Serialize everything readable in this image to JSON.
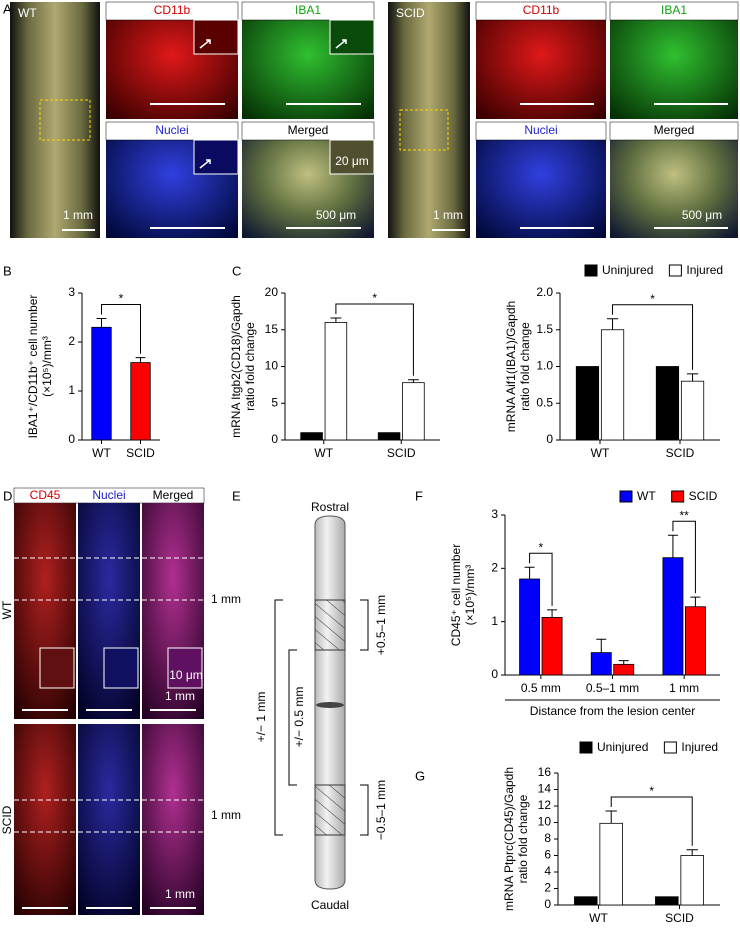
{
  "panel_labels": [
    "A",
    "B",
    "C",
    "D",
    "E",
    "F",
    "G"
  ],
  "panel_a": {
    "wt": {
      "label": "WT",
      "tiles": [
        "CD11b",
        "IBA1",
        "Nuclei",
        "Merged"
      ],
      "scale_bars": [
        "1 mm",
        "20 μm",
        "500 μm"
      ]
    },
    "scid": {
      "label": "SCID",
      "tiles": [
        "CD11b",
        "IBA1",
        "Nuclei",
        "Merged"
      ],
      "scale_bars": [
        "1 mm",
        "500 μm"
      ]
    }
  },
  "panel_d": {
    "columns": [
      "CD45",
      "Nuclei",
      "Merged"
    ],
    "rows": [
      "WT",
      "SCID"
    ],
    "side_labels": [
      "1 mm",
      "1 mm"
    ],
    "scale_bars": [
      "10 μm",
      "1 mm",
      "1 mm"
    ]
  },
  "panel_e": {
    "top": "Rostral",
    "bottom": "Caudal",
    "brackets": [
      "+/− 1 mm",
      "+/− 0.5 mm",
      "+0.5–1 mm",
      "−0.5–1 mm"
    ]
  },
  "chart_data": [
    {
      "type": "bar",
      "ylabel": [
        "IBA1⁺/CD11b⁺ cell number",
        "(×10⁵)/mm³"
      ],
      "categories": [
        "WT",
        "SCID"
      ],
      "values": [
        2.3,
        1.58
      ],
      "errors": [
        0.18,
        0.1
      ],
      "colors": [
        "#0000ff",
        "#ff0000"
      ],
      "ylim": [
        0,
        3
      ],
      "yticks": [
        0,
        1,
        2,
        3
      ],
      "significance": [
        "*"
      ]
    },
    {
      "type": "bar",
      "ylabel": [
        "mRNA Itgb2(CD18)/Gapdh",
        "ratio fold change"
      ],
      "categories": [
        "WT",
        "SCID"
      ],
      "series": [
        {
          "name": "Uninjured",
          "color": "#000000",
          "values": [
            1,
            1
          ]
        },
        {
          "name": "Injured",
          "color": "#ffffff",
          "values": [
            16,
            7.8
          ],
          "errors": [
            0.6,
            0.4
          ]
        }
      ],
      "ylim": [
        0,
        20
      ],
      "yticks": [
        0,
        5,
        10,
        15,
        20
      ],
      "significance": [
        "*"
      ]
    },
    {
      "type": "bar",
      "ylabel": [
        "mRNA Aif1(IBA1)/Gapdh",
        "ratio fold change"
      ],
      "categories": [
        "WT",
        "SCID"
      ],
      "series": [
        {
          "name": "Uninjured",
          "color": "#000000",
          "values": [
            1,
            1
          ]
        },
        {
          "name": "Injured",
          "color": "#ffffff",
          "values": [
            1.5,
            0.8
          ],
          "errors": [
            0.15,
            0.1
          ]
        }
      ],
      "ylim": [
        0,
        2
      ],
      "yticks": [
        0,
        0.5,
        {
          "value": 1,
          "label": "1.0"
        },
        1.5,
        {
          "value": 2,
          "label": "2.0"
        }
      ],
      "significance": [
        "*"
      ],
      "legend": "top"
    },
    {
      "type": "bar",
      "ylabel": [
        "CD45⁺ cell number",
        "(×10⁵)/mm³"
      ],
      "xlabel": "Distance from the lesion center",
      "categories": [
        "0.5 mm",
        "0.5–1 mm",
        "1 mm"
      ],
      "series": [
        {
          "name": "WT",
          "color": "#0000ff",
          "values": [
            1.8,
            0.42,
            2.2
          ],
          "errors": [
            0.22,
            0.25,
            0.42
          ]
        },
        {
          "name": "SCID",
          "color": "#ff0000",
          "values": [
            1.08,
            0.2,
            1.28
          ],
          "errors": [
            0.14,
            0.07,
            0.18
          ]
        }
      ],
      "ylim": [
        0,
        3
      ],
      "yticks": [
        0,
        1,
        2,
        3
      ],
      "significance": [
        "*",
        "**"
      ],
      "legend": "top"
    },
    {
      "type": "bar",
      "ylabel": [
        "mRNA Ptprc(CD45)/Gapdh",
        "ratio fold change"
      ],
      "categories": [
        "WT",
        "SCID"
      ],
      "series": [
        {
          "name": "Uninjured",
          "color": "#000000",
          "values": [
            1,
            1
          ]
        },
        {
          "name": "Injured",
          "color": "#ffffff",
          "values": [
            9.9,
            6
          ],
          "errors": [
            1.5,
            0.7
          ]
        }
      ],
      "ylim": [
        0,
        16
      ],
      "yticks": [
        0,
        2,
        4,
        6,
        8,
        10,
        12,
        14,
        16
      ],
      "significance": [
        "*"
      ],
      "legend": "top"
    }
  ]
}
